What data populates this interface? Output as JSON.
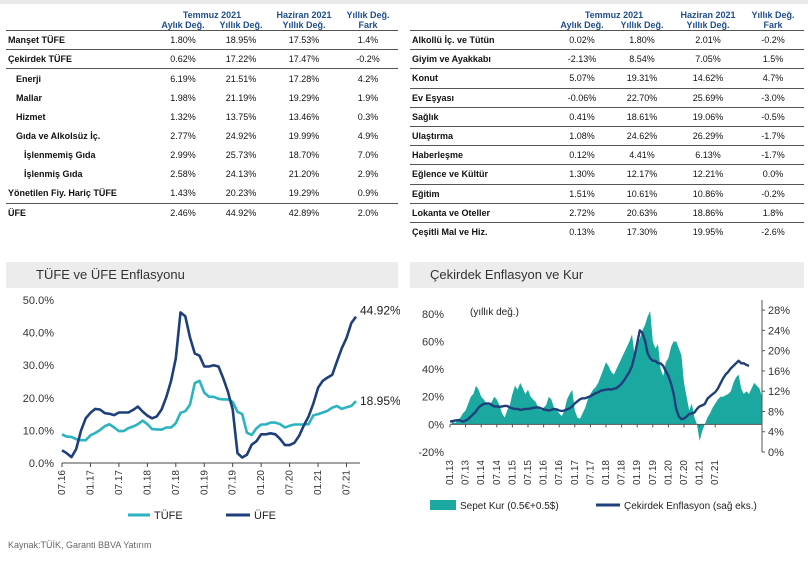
{
  "table_left": {
    "headers": {
      "group1": "Temmuz 2021",
      "group2": "Haziran 2021",
      "group3": "Yıllık Değ.",
      "sub1": "Aylık Değ.",
      "sub2": "Yıllık Değ.",
      "sub3": "Yıllık Değ.",
      "sub4": "Fark"
    },
    "rows": [
      {
        "label": "Manşet TÜFE",
        "monthly": "1.80%",
        "annual": "18.95%",
        "prev": "17.53%",
        "diff": "1.4%"
      },
      {
        "label": "Çekirdek TÜFE",
        "monthly": "0.62%",
        "annual": "17.22%",
        "prev": "17.47%",
        "diff": "-0.2%"
      },
      {
        "label": "Enerji",
        "monthly": "6.19%",
        "annual": "21.51%",
        "prev": "17.28%",
        "diff": "4.2%"
      },
      {
        "label": "Mallar",
        "monthly": "1.98%",
        "annual": "21.19%",
        "prev": "19.29%",
        "diff": "1.9%"
      },
      {
        "label": "Hizmet",
        "monthly": "1.32%",
        "annual": "13.75%",
        "prev": "13.46%",
        "diff": "0.3%"
      },
      {
        "label": "Gıda ve Alkolsüz İç.",
        "monthly": "2.77%",
        "annual": "24.92%",
        "prev": "19.99%",
        "diff": "4.9%"
      },
      {
        "label": "İşlenmemiş Gıda",
        "monthly": "2.99%",
        "annual": "25.73%",
        "prev": "18.70%",
        "diff": "7.0%"
      },
      {
        "label": "İşlenmiş Gıda",
        "monthly": "2.58%",
        "annual": "24.13%",
        "prev": "21.20%",
        "diff": "2.9%"
      },
      {
        "label": "Yönetilen Fiy. Hariç TÜFE",
        "monthly": "1.43%",
        "annual": "20.23%",
        "prev": "19.29%",
        "diff": "0.9%"
      },
      {
        "label": "ÜFE",
        "monthly": "2.46%",
        "annual": "44.92%",
        "prev": "42.89%",
        "diff": "2.0%"
      }
    ]
  },
  "table_right": {
    "headers": {
      "group1": "Temmuz 2021",
      "group2": "Haziran 2021",
      "group3": "Yıllık Değ.",
      "sub1": "Aylık Değ.",
      "sub2": "Yıllık Değ.",
      "sub3": "Yıllık Değ.",
      "sub4": "Fark"
    },
    "rows": [
      {
        "label": "Alkollü İç. ve Tütün",
        "monthly": "0.02%",
        "annual": "1.80%",
        "prev": "2.01%",
        "diff": "-0.2%"
      },
      {
        "label": "Giyim ve Ayakkabı",
        "monthly": "-2.13%",
        "annual": "8.54%",
        "prev": "7.05%",
        "diff": "1.5%"
      },
      {
        "label": "Konut",
        "monthly": "5.07%",
        "annual": "19.31%",
        "prev": "14.62%",
        "diff": "4.7%"
      },
      {
        "label": "Ev Eşyası",
        "monthly": "-0.06%",
        "annual": "22.70%",
        "prev": "25.69%",
        "diff": "-3.0%"
      },
      {
        "label": "Sağlık",
        "monthly": "0.41%",
        "annual": "18.61%",
        "prev": "19.06%",
        "diff": "-0.5%"
      },
      {
        "label": "Ulaştırma",
        "monthly": "1.08%",
        "annual": "24.62%",
        "prev": "26.29%",
        "diff": "-1.7%"
      },
      {
        "label": "Haberleşme",
        "monthly": "0.12%",
        "annual": "4.41%",
        "prev": "6.13%",
        "diff": "-1.7%"
      },
      {
        "label": "Eğlence ve Kültür",
        "monthly": "1.30%",
        "annual": "12.17%",
        "prev": "12.21%",
        "diff": "0.0%"
      },
      {
        "label": "Eğitim",
        "monthly": "1.51%",
        "annual": "10.61%",
        "prev": "10.86%",
        "diff": "-0.2%"
      },
      {
        "label": "Lokanta ve Oteller",
        "monthly": "2.72%",
        "annual": "20.63%",
        "prev": "18.86%",
        "diff": "1.8%"
      },
      {
        "label": "Çeşitli Mal ve Hiz.",
        "monthly": "0.13%",
        "annual": "17.30%",
        "prev": "19.95%",
        "diff": "-2.6%"
      }
    ]
  },
  "chart_data": [
    {
      "type": "line",
      "title": "TÜFE ve ÜFE Enflasyonu",
      "x_ticks": [
        "07.16",
        "01.17",
        "07.17",
        "01.18",
        "07.18",
        "01.19",
        "07.19",
        "01.20",
        "07.20",
        "01.21",
        "07.21"
      ],
      "y_ticks": [
        "0.0%",
        "10.0%",
        "20.0%",
        "30.0%",
        "40.0%",
        "50.0%"
      ],
      "ylim": [
        0,
        50
      ],
      "grid": false,
      "legend": "bottom",
      "colors": {
        "tufe": "#2bb3c0",
        "ufe": "#1f3f7a"
      },
      "series": [
        {
          "name": "TÜFE",
          "end_label": "18.95%",
          "values": [
            8.8,
            8.1,
            8.0,
            7.3,
            7.0,
            7.0,
            8.5,
            9.2,
            10.1,
            11.3,
            11.9,
            10.9,
            9.8,
            9.8,
            10.7,
            11.2,
            11.9,
            13.0,
            11.9,
            10.4,
            10.3,
            10.2,
            10.9,
            10.9,
            12.2,
            15.4,
            15.9,
            17.9,
            24.5,
            25.2,
            21.6,
            20.3,
            20.3,
            19.7,
            19.5,
            19.5,
            18.7,
            15.7,
            15.0,
            9.3,
            8.6,
            10.6,
            11.8,
            11.8,
            12.4,
            12.4,
            11.9,
            10.9,
            11.4,
            11.8,
            11.8,
            11.8,
            11.9,
            14.6,
            15.0,
            15.5,
            16.0,
            17.0,
            17.5,
            16.6,
            17.1,
            17.5,
            18.95
          ]
        },
        {
          "name": "ÜFE",
          "end_label": "44.92%",
          "values": [
            3.9,
            3.0,
            1.8,
            4.3,
            9.9,
            13.7,
            15.4,
            16.6,
            16.4,
            15.3,
            15.1,
            14.7,
            15.5,
            15.5,
            15.5,
            16.3,
            17.3,
            15.8,
            14.5,
            13.7,
            14.3,
            16.4,
            20.2,
            25.2,
            32.1,
            46.2,
            45.0,
            38.5,
            33.6,
            32.9,
            29.6,
            29.6,
            30.0,
            29.6,
            26.0,
            21.8,
            16.4,
            3.0,
            1.7,
            2.5,
            5.6,
            6.7,
            8.8,
            8.8,
            9.1,
            8.8,
            7.4,
            5.5,
            5.5,
            6.2,
            8.3,
            11.5,
            14.3,
            18.2,
            23.1,
            25.2,
            26.2,
            27.1,
            31.2,
            35.2,
            38.3,
            42.9,
            44.92
          ]
        }
      ]
    },
    {
      "type": "area",
      "title": "Çekirdek Enflasyon ve Kur",
      "annotation": "(yıllık değ.)",
      "x_ticks": [
        "01.13",
        "07.13",
        "01.14",
        "07.14",
        "01.15",
        "07.15",
        "01.16",
        "07.16",
        "01.17",
        "07.17",
        "01.18",
        "07.18",
        "01.19",
        "07.19",
        "01.20",
        "07.20",
        "01.21",
        "07.21"
      ],
      "y_left_ticks": [
        "-20%",
        "0%",
        "20%",
        "40%",
        "60%",
        "80%"
      ],
      "y_right_ticks": [
        "0%",
        "4%",
        "8%",
        "12%",
        "16%",
        "20%",
        "24%",
        "28%"
      ],
      "ylim_left": [
        -20,
        90
      ],
      "ylim_right": [
        0,
        30
      ],
      "grid": false,
      "legend": "bottom",
      "colors": {
        "kur": "#1aa8a0",
        "core": "#1f3f7a"
      },
      "series": [
        {
          "name": "Sepet Kur (0.5€+0.5$)",
          "axis": "left",
          "values": [
            -1,
            2,
            1,
            3,
            5,
            8,
            10,
            15,
            20,
            22,
            28,
            25,
            20,
            18,
            15,
            14,
            16,
            20,
            18,
            14,
            8,
            5,
            10,
            14,
            22,
            28,
            25,
            30,
            26,
            22,
            25,
            20,
            18,
            16,
            12,
            10,
            12,
            14,
            20,
            18,
            12,
            10,
            8,
            6,
            10,
            18,
            22,
            25,
            10,
            5,
            4,
            8,
            12,
            18,
            22,
            25,
            27,
            30,
            35,
            40,
            45,
            42,
            38,
            36,
            40,
            44,
            48,
            52,
            56,
            60,
            65,
            50,
            58,
            62,
            68,
            72,
            78,
            82,
            60,
            55,
            58,
            40,
            35,
            45,
            48,
            56,
            60,
            60,
            55,
            50,
            30,
            20,
            10,
            15,
            5,
            0,
            -12,
            -5,
            0,
            5,
            8,
            12,
            15,
            18,
            20,
            20,
            21,
            22,
            24,
            30,
            34,
            36,
            26,
            22,
            24,
            22,
            26,
            30,
            28,
            26,
            20
          ]
        },
        {
          "name": "Çekirdek Enflasyon (sağ eks.)",
          "axis": "right",
          "values": [
            6.0,
            6.1,
            6.2,
            6.3,
            6.2,
            6.0,
            6.2,
            6.5,
            7.0,
            7.5,
            8.0,
            8.8,
            9.2,
            9.5,
            9.6,
            9.6,
            9.3,
            9.0,
            9.0,
            8.9,
            9.0,
            9.1,
            9.1,
            8.8,
            8.6,
            8.5,
            8.5,
            8.3,
            8.4,
            8.5,
            8.5,
            8.6,
            8.7,
            8.8,
            8.8,
            8.6,
            8.4,
            8.3,
            8.2,
            8.3,
            8.5,
            8.4,
            8.2,
            8.1,
            8.2,
            8.4,
            8.6,
            9.0,
            9.6,
            10.0,
            10.4,
            10.6,
            10.6,
            10.8,
            11.0,
            11.3,
            11.6,
            11.8,
            12.1,
            12.2,
            12.3,
            12.4,
            12.3,
            12.5,
            12.6,
            13.0,
            13.5,
            14.2,
            15.0,
            15.8,
            17.0,
            19.0,
            21.5,
            24.0,
            23.5,
            22.0,
            19.5,
            18.5,
            18.0,
            18.0,
            17.5,
            17.5,
            17.0,
            16.0,
            15.0,
            13.5,
            11.5,
            8.5,
            7.0,
            6.5,
            6.6,
            7.0,
            7.5,
            7.6,
            7.8,
            8.5,
            9.0,
            9.2,
            9.5,
            10.5,
            11.0,
            11.4,
            11.8,
            12.5,
            13.5,
            14.5,
            15.3,
            15.8,
            16.5,
            17.0,
            17.5,
            18.0,
            17.5,
            17.5,
            17.2,
            17.0
          ]
        }
      ]
    }
  ],
  "source": "Kaynak:TÜİK, Garanti BBVA Yatırım"
}
